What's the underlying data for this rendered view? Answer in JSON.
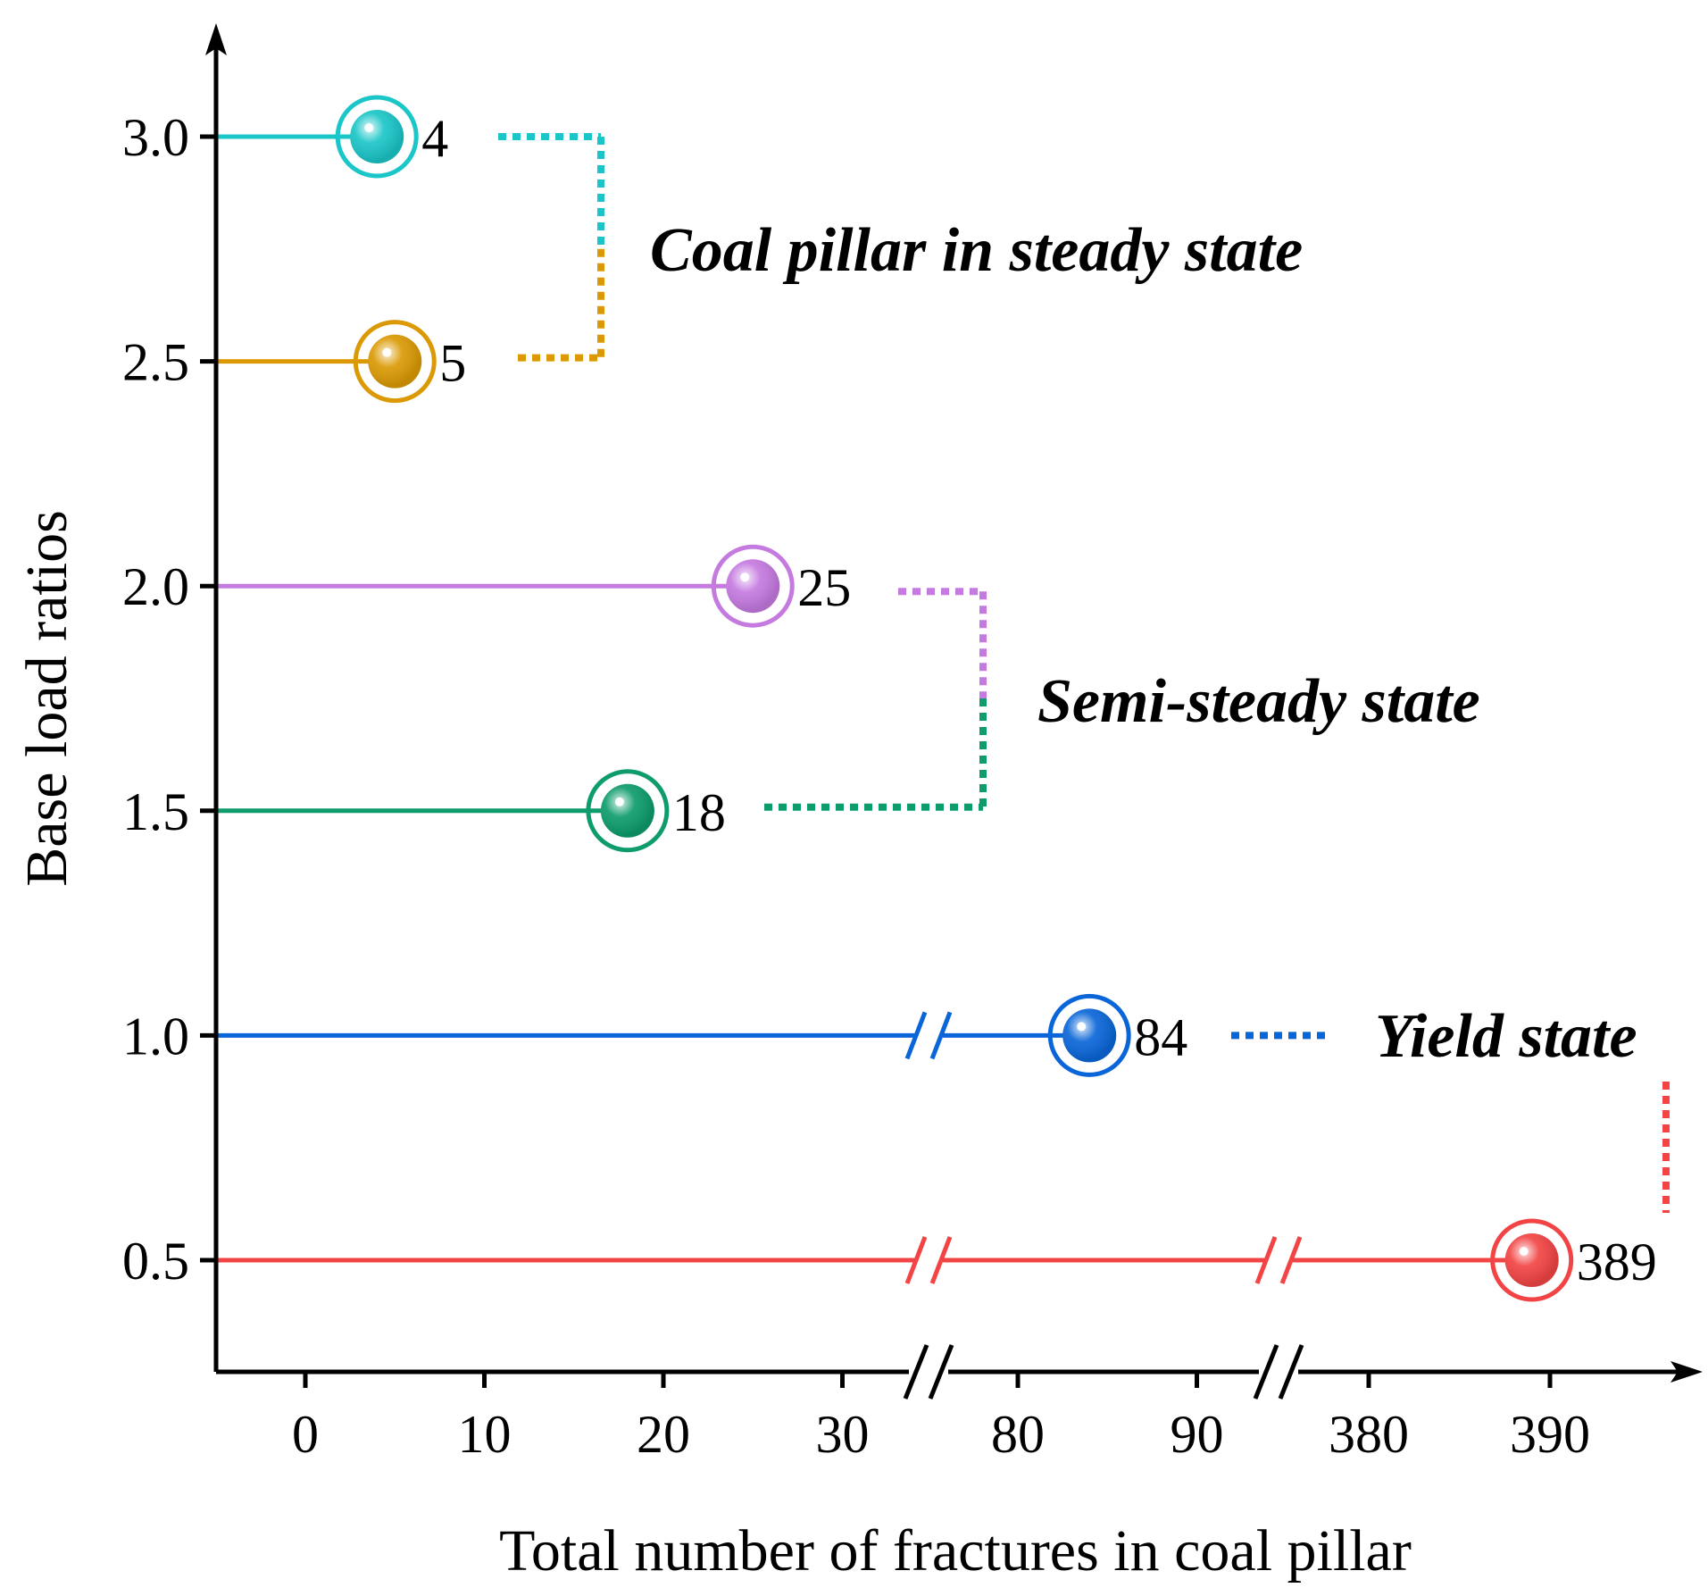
{
  "chart_data": {
    "type": "lollipop",
    "title": "",
    "xlabel": "Total number of fractures in coal pillar",
    "ylabel": "Base load ratios",
    "x_ticks": [
      "0",
      "10",
      "20",
      "30",
      "80",
      "90",
      "380",
      "390"
    ],
    "x_segments": [
      [
        -5,
        35
      ],
      [
        75,
        95
      ],
      [
        375,
        397
      ]
    ],
    "y_ticks": [
      "3.0",
      "2.5",
      "2.0",
      "1.5",
      "1.0",
      "0.5"
    ],
    "ylim": [
      0.23,
      3.25
    ],
    "series": [
      {
        "y": 3.0,
        "value": 4,
        "label": "4",
        "color": "#1bc6c8"
      },
      {
        "y": 2.5,
        "value": 5,
        "label": "5",
        "color": "#db9a05"
      },
      {
        "y": 2.0,
        "value": 25,
        "label": "25",
        "color": "#c57ae0"
      },
      {
        "y": 1.5,
        "value": 18,
        "label": "18",
        "color": "#0e9c6c"
      },
      {
        "y": 1.0,
        "value": 84,
        "label": "84",
        "color": "#0a66d8"
      },
      {
        "y": 0.5,
        "value": 389,
        "label": "389",
        "color": "#f24444"
      }
    ],
    "state_groups": [
      {
        "label": "Coal pillar in steady state",
        "members": [
          3.0,
          2.5
        ]
      },
      {
        "label": "Semi-steady state",
        "members": [
          2.0,
          1.5
        ]
      },
      {
        "label": "Yield state",
        "members": [
          1.0,
          0.5
        ]
      }
    ]
  }
}
